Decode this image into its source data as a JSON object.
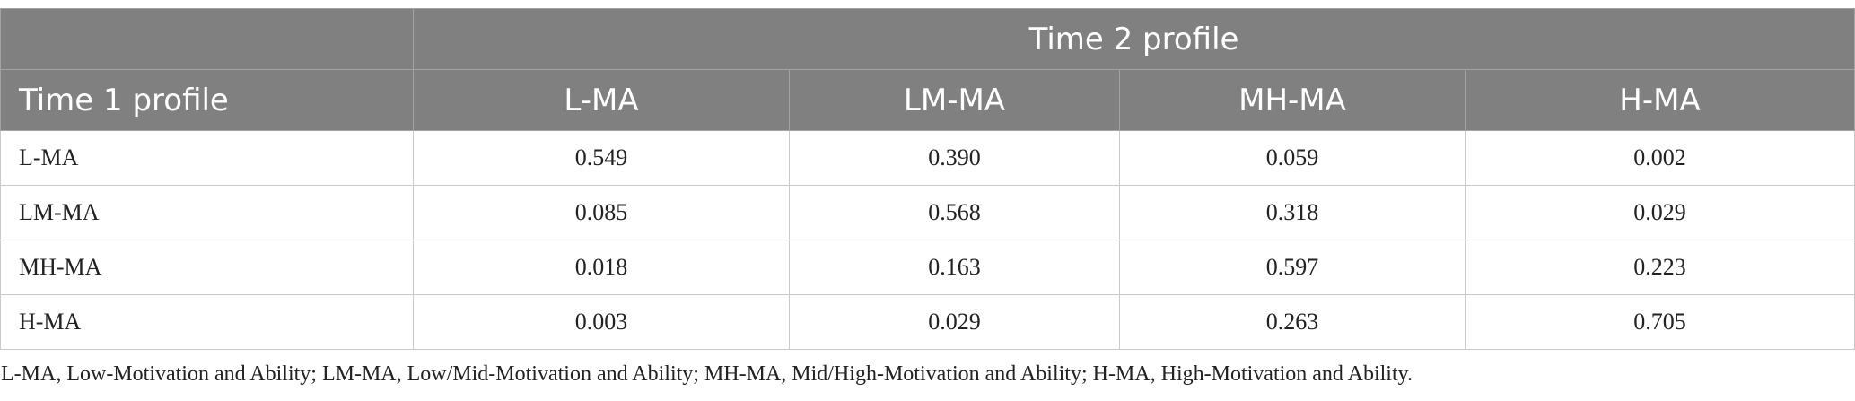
{
  "table": {
    "spanning_header": "Time 2 profile",
    "row_header_label": "Time 1 profile",
    "columns": [
      "L-MA",
      "LM-MA",
      "MH-MA",
      "H-MA"
    ],
    "rows": [
      {
        "label": "L-MA",
        "values": [
          "0.549",
          "0.390",
          "0.059",
          "0.002"
        ]
      },
      {
        "label": "LM-MA",
        "values": [
          "0.085",
          "0.568",
          "0.318",
          "0.029"
        ]
      },
      {
        "label": "MH-MA",
        "values": [
          "0.018",
          "0.163",
          "0.597",
          "0.223"
        ]
      },
      {
        "label": "H-MA",
        "values": [
          "0.003",
          "0.029",
          "0.263",
          "0.705"
        ]
      }
    ]
  },
  "footnote": "L-MA, Low-Motivation and Ability; LM-MA, Low/Mid-Motivation and Ability; MH-MA, Mid/High-Motivation and Ability; H-MA, High-Motivation and Ability."
}
